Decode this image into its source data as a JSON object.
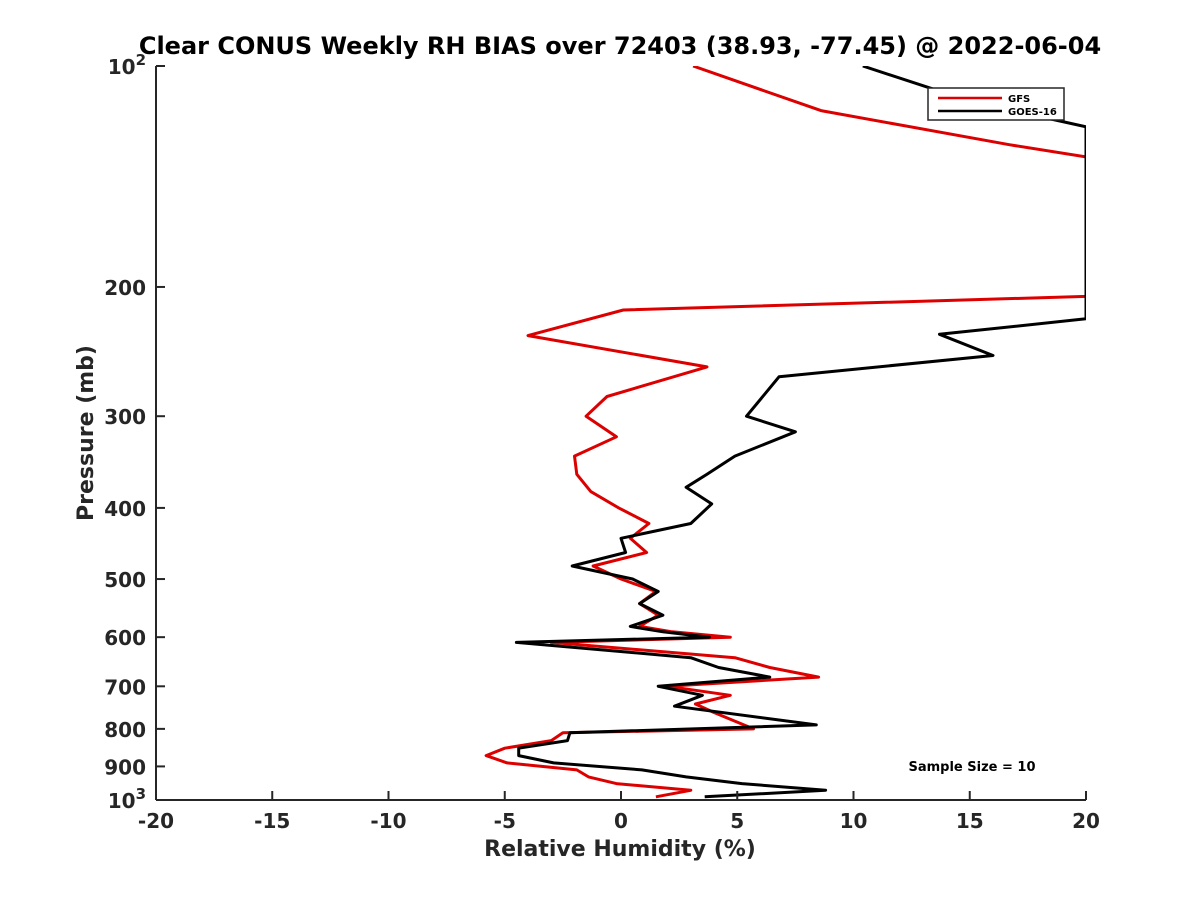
{
  "chart_data": {
    "type": "line",
    "title": "Clear CONUS Weekly RH BIAS over 72403 (38.93, -77.45) @ 2022-06-04",
    "xlabel": "Relative Humidity (%)",
    "ylabel": "Pressure (mb)",
    "xlim": [
      -20,
      20
    ],
    "ylim": [
      100,
      1000
    ],
    "y_scale": "log",
    "y_reversed": true,
    "x_ticks": [
      -20,
      -15,
      -10,
      -5,
      0,
      5,
      10,
      15,
      20
    ],
    "x_tick_labels": [
      "-20",
      "-15",
      "-10",
      "-5",
      "0",
      "5",
      "10",
      "15",
      "20"
    ],
    "y_ticks": [
      100,
      200,
      300,
      400,
      500,
      600,
      700,
      800,
      900,
      1000
    ],
    "y_tick_labels": [
      {
        "base": "10",
        "exp": "2"
      },
      {
        "base": "200",
        "exp": ""
      },
      {
        "base": "300",
        "exp": ""
      },
      {
        "base": "400",
        "exp": ""
      },
      {
        "base": "500",
        "exp": ""
      },
      {
        "base": "600",
        "exp": ""
      },
      {
        "base": "700",
        "exp": ""
      },
      {
        "base": "800",
        "exp": ""
      },
      {
        "base": "900",
        "exp": ""
      },
      {
        "base": "10",
        "exp": "3"
      }
    ],
    "grid": false,
    "legend_position": "top-right",
    "annotation": "Sample Size = 10",
    "series": [
      {
        "name": "GFS",
        "color": "#dd0000",
        "points": [
          [
            3.1,
            100
          ],
          [
            8.6,
            115
          ],
          [
            16.7,
            128
          ],
          [
            20.0,
            133
          ],
          [
            20.0,
            206
          ],
          [
            0.1,
            215
          ],
          [
            -4.0,
            233
          ],
          [
            3.7,
            257
          ],
          [
            -0.6,
            282
          ],
          [
            -1.5,
            300
          ],
          [
            -0.2,
            320
          ],
          [
            -2.0,
            340
          ],
          [
            -1.9,
            360
          ],
          [
            -1.3,
            380
          ],
          [
            -0.1,
            400
          ],
          [
            1.2,
            420
          ],
          [
            0.4,
            440
          ],
          [
            1.1,
            460
          ],
          [
            -1.2,
            480
          ],
          [
            0.0,
            500
          ],
          [
            1.5,
            520
          ],
          [
            0.8,
            540
          ],
          [
            1.6,
            560
          ],
          [
            0.8,
            580
          ],
          [
            2.2,
            590
          ],
          [
            4.7,
            600
          ],
          [
            -3.0,
            610
          ],
          [
            4.9,
            640
          ],
          [
            6.4,
            660
          ],
          [
            8.5,
            680
          ],
          [
            2.0,
            700
          ],
          [
            4.7,
            720
          ],
          [
            3.2,
            740
          ],
          [
            4.0,
            760
          ],
          [
            5.7,
            800
          ],
          [
            -2.5,
            810
          ],
          [
            -3.0,
            830
          ],
          [
            -5.0,
            850
          ],
          [
            -5.8,
            870
          ],
          [
            -4.9,
            890
          ],
          [
            -1.9,
            910
          ],
          [
            -1.4,
            930
          ],
          [
            -0.2,
            950
          ],
          [
            3.0,
            970
          ],
          [
            1.5,
            990
          ]
        ]
      },
      {
        "name": "GOES-16",
        "color": "#000000",
        "points": [
          [
            10.4,
            100
          ],
          [
            14.4,
            110
          ],
          [
            17.9,
            117
          ],
          [
            20.0,
            121
          ],
          [
            20.0,
            221
          ],
          [
            13.7,
            232
          ],
          [
            16.0,
            248
          ],
          [
            6.8,
            265
          ],
          [
            5.4,
            300
          ],
          [
            7.5,
            315
          ],
          [
            4.9,
            340
          ],
          [
            3.7,
            360
          ],
          [
            2.8,
            375
          ],
          [
            3.9,
            395
          ],
          [
            3.0,
            420
          ],
          [
            0.0,
            440
          ],
          [
            0.2,
            460
          ],
          [
            -2.1,
            480
          ],
          [
            0.5,
            500
          ],
          [
            1.6,
            520
          ],
          [
            0.8,
            540
          ],
          [
            1.8,
            560
          ],
          [
            0.4,
            580
          ],
          [
            1.8,
            590
          ],
          [
            3.8,
            600
          ],
          [
            -4.5,
            610
          ],
          [
            3.0,
            640
          ],
          [
            4.2,
            660
          ],
          [
            6.4,
            680
          ],
          [
            1.6,
            700
          ],
          [
            3.5,
            720
          ],
          [
            2.3,
            745
          ],
          [
            8.4,
            790
          ],
          [
            -2.2,
            810
          ],
          [
            -2.3,
            830
          ],
          [
            -4.4,
            850
          ],
          [
            -4.4,
            870
          ],
          [
            -2.9,
            890
          ],
          [
            0.9,
            910
          ],
          [
            2.8,
            930
          ],
          [
            5.2,
            950
          ],
          [
            8.8,
            970
          ],
          [
            3.6,
            990
          ]
        ]
      }
    ]
  }
}
